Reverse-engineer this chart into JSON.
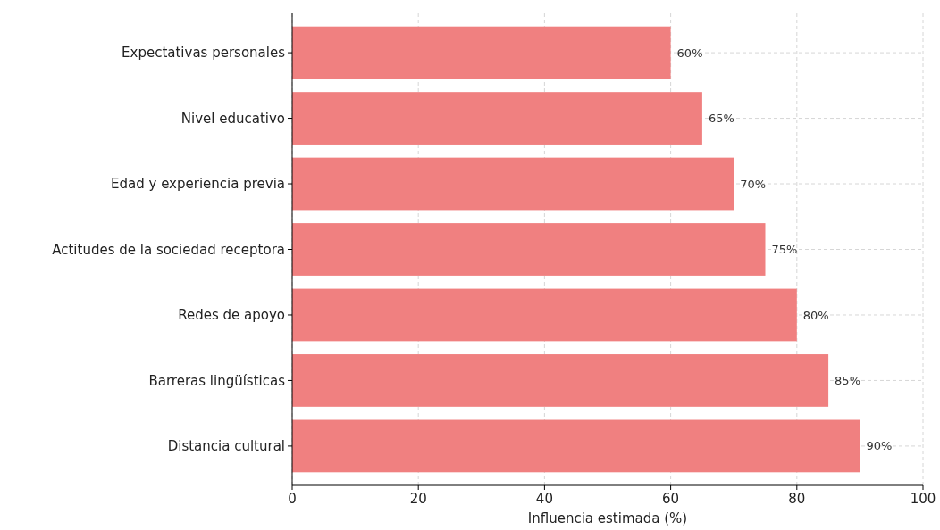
{
  "chart_data": {
    "type": "bar",
    "orientation": "horizontal",
    "xlabel": "Influencia estimada (%)",
    "categories": [
      "Expectativas personales",
      "Nivel educativo",
      "Edad y experiencia previa",
      "Actitudes de la sociedad receptora",
      "Redes de apoyo",
      "Barreras lingüísticas",
      "Distancia cultural"
    ],
    "values": [
      60,
      65,
      70,
      75,
      80,
      85,
      90
    ],
    "value_labels": [
      "60%",
      "65%",
      "70%",
      "75%",
      "80%",
      "85%",
      "90%"
    ],
    "color": "#f08080",
    "xlim": [
      0,
      100
    ],
    "xticks": [
      0,
      20,
      40,
      60,
      80,
      100
    ],
    "grid": true
  }
}
